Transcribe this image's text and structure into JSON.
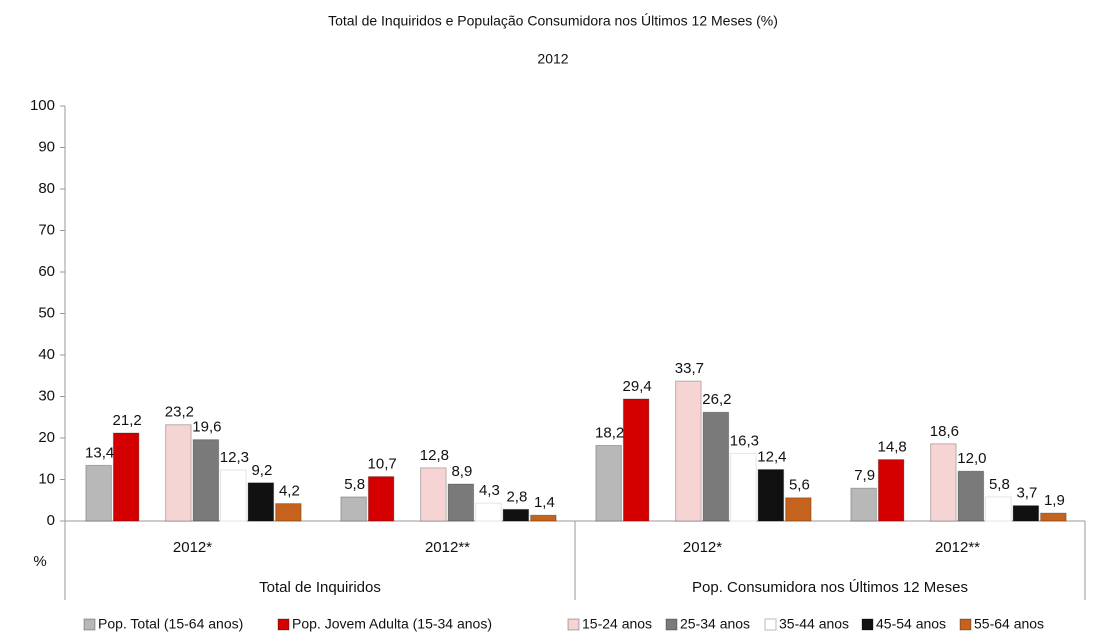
{
  "chart_data": {
    "type": "bar",
    "title": "Total de Inquiridos e População Consumidora nos Últimos 12 Meses (%)",
    "subtitle": "2012",
    "y_label": "%",
    "categories": [
      "2012*",
      "2012**",
      "2012*",
      "2012**"
    ],
    "groups": [
      "Total de Inquiridos",
      "Pop. Consumidora nos Últimos 12 Meses"
    ],
    "ylim": [
      0,
      100
    ],
    "yticks": [
      0,
      10,
      20,
      30,
      40,
      50,
      60,
      70,
      80,
      90,
      100
    ],
    "series": [
      {
        "name": "Pop. Total (15-64 anos)",
        "color": "#b8b8b8",
        "values": [
          13.4,
          5.8,
          18.2,
          7.9
        ],
        "value_labels": [
          "13,4",
          "5,8",
          "18,2",
          "7,9"
        ]
      },
      {
        "name": "Pop. Jovem Adulta (15-34 anos)",
        "color": "#d40000",
        "values": [
          21.2,
          10.7,
          29.4,
          14.8
        ],
        "value_labels": [
          "21,2",
          "10,7",
          "29,4",
          "14,8"
        ]
      },
      {
        "name": "15-24 anos",
        "color": "#f6d4d4",
        "values": [
          23.2,
          12.8,
          33.7,
          18.6
        ],
        "value_labels": [
          "23,2",
          "12,8",
          "33,7",
          "18,6"
        ]
      },
      {
        "name": "25-34 anos",
        "color": "#7a7a7a",
        "values": [
          19.6,
          8.9,
          26.2,
          12.0
        ],
        "value_labels": [
          "19,6",
          "8,9",
          "26,2",
          "12,0"
        ]
      },
      {
        "name": "35-44 anos",
        "color": "#ffffff",
        "values": [
          12.3,
          4.3,
          16.3,
          5.8
        ],
        "value_labels": [
          "12,3",
          "4,3",
          "16,3",
          "5,8"
        ]
      },
      {
        "name": "45-54 anos",
        "color": "#111111",
        "values": [
          9.2,
          2.8,
          12.4,
          3.7
        ],
        "value_labels": [
          "9,2",
          "2,8",
          "12,4",
          "3,7"
        ]
      },
      {
        "name": "55-64 anos",
        "color": "#c4621e",
        "values": [
          4.2,
          1.4,
          5.6,
          1.9
        ],
        "value_labels": [
          "4,2",
          "1,4",
          "5,6",
          "1,9"
        ]
      }
    ]
  }
}
